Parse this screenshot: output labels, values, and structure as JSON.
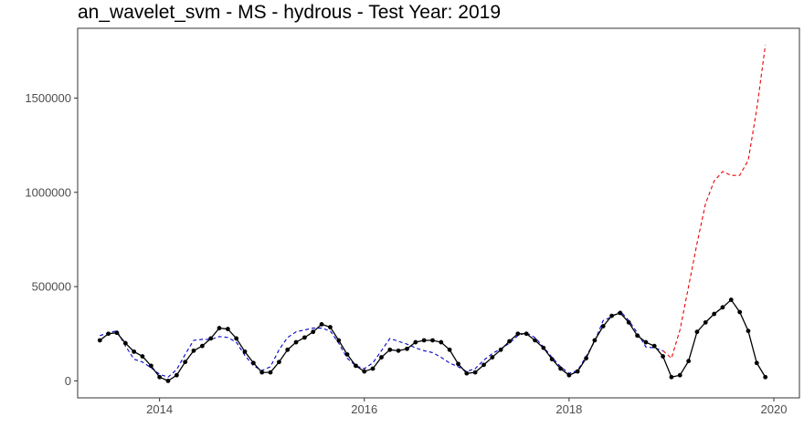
{
  "chart_data": {
    "type": "line",
    "title": "an_wavelet_svm - MS - hydrous - Test Year: 2019",
    "xlabel": "",
    "ylabel": "",
    "xlim": [
      2013.2,
      2020.25
    ],
    "ylim": [
      -90000,
      1870000
    ],
    "x_ticks": [
      2014,
      2016,
      2018,
      2020
    ],
    "y_ticks": [
      0,
      500000,
      1000000,
      1500000
    ],
    "x_tick_labels": [
      "2014",
      "2016",
      "2018",
      "2020"
    ],
    "y_tick_labels": [
      "0",
      "500000",
      "1000000",
      "1500000"
    ],
    "grid": false,
    "legend": "none",
    "series": [
      {
        "style": "solid-black-with-points",
        "color": "#000000",
        "x": [
          2013.417,
          2013.5,
          2013.583,
          2013.667,
          2013.75,
          2013.833,
          2013.917,
          2014.0,
          2014.083,
          2014.167,
          2014.25,
          2014.333,
          2014.417,
          2014.5,
          2014.583,
          2014.667,
          2014.75,
          2014.833,
          2014.917,
          2015.0,
          2015.083,
          2015.167,
          2015.25,
          2015.333,
          2015.417,
          2015.5,
          2015.583,
          2015.667,
          2015.75,
          2015.833,
          2015.917,
          2016.0,
          2016.083,
          2016.167,
          2016.25,
          2016.333,
          2016.417,
          2016.5,
          2016.583,
          2016.667,
          2016.75,
          2016.833,
          2016.917,
          2017.0,
          2017.083,
          2017.167,
          2017.25,
          2017.333,
          2017.417,
          2017.5,
          2017.583,
          2017.667,
          2017.75,
          2017.833,
          2017.917,
          2018.0,
          2018.083,
          2018.167,
          2018.25,
          2018.333,
          2018.417,
          2018.5,
          2018.583,
          2018.667,
          2018.75,
          2018.833,
          2018.917,
          2019.0,
          2019.083,
          2019.167,
          2019.25,
          2019.333,
          2019.417,
          2019.5,
          2019.583,
          2019.667,
          2019.75,
          2019.833,
          2019.917
        ],
        "values": [
          215000,
          250000,
          255000,
          200000,
          155000,
          130000,
          80000,
          20000,
          0,
          30000,
          100000,
          160000,
          185000,
          225000,
          280000,
          275000,
          225000,
          155000,
          95000,
          45000,
          45000,
          100000,
          165000,
          205000,
          230000,
          260000,
          300000,
          285000,
          215000,
          140000,
          80000,
          50000,
          65000,
          125000,
          165000,
          160000,
          170000,
          205000,
          215000,
          215000,
          205000,
          165000,
          90000,
          40000,
          45000,
          85000,
          125000,
          165000,
          210000,
          250000,
          250000,
          215000,
          175000,
          115000,
          65000,
          30000,
          50000,
          120000,
          215000,
          290000,
          345000,
          360000,
          310000,
          240000,
          205000,
          185000,
          130000,
          20000,
          30000,
          105000,
          260000,
          310000,
          355000,
          390000,
          430000,
          365000,
          265000,
          95000,
          20000
        ]
      },
      {
        "style": "dashed-blue",
        "color": "#0000cc",
        "x": [
          2013.417,
          2013.5,
          2013.583,
          2013.667,
          2013.75,
          2013.833,
          2013.917,
          2014.0,
          2014.083,
          2014.167,
          2014.25,
          2014.333,
          2014.417,
          2014.5,
          2014.583,
          2014.667,
          2014.75,
          2014.833,
          2014.917,
          2015.0,
          2015.083,
          2015.167,
          2015.25,
          2015.333,
          2015.417,
          2015.5,
          2015.583,
          2015.667,
          2015.75,
          2015.833,
          2015.917,
          2016.0,
          2016.083,
          2016.167,
          2016.25,
          2016.333,
          2016.417,
          2016.5,
          2016.583,
          2016.667,
          2016.75,
          2016.833,
          2016.917,
          2017.0,
          2017.083,
          2017.167,
          2017.25,
          2017.333,
          2017.417,
          2017.5,
          2017.583,
          2017.667,
          2017.75,
          2017.833,
          2017.917,
          2018.0,
          2018.083,
          2018.167,
          2018.25,
          2018.333,
          2018.417,
          2018.5,
          2018.583,
          2018.667,
          2018.75,
          2018.833,
          2018.917
        ],
        "values": [
          240000,
          255000,
          265000,
          185000,
          115000,
          100000,
          70000,
          35000,
          20000,
          60000,
          140000,
          215000,
          220000,
          220000,
          235000,
          230000,
          205000,
          135000,
          80000,
          55000,
          75000,
          165000,
          230000,
          260000,
          270000,
          280000,
          280000,
          265000,
          200000,
          120000,
          80000,
          65000,
          95000,
          160000,
          225000,
          210000,
          195000,
          175000,
          160000,
          150000,
          125000,
          95000,
          75000,
          50000,
          65000,
          110000,
          145000,
          170000,
          200000,
          240000,
          255000,
          230000,
          180000,
          125000,
          75000,
          40000,
          55000,
          130000,
          210000,
          320000,
          340000,
          370000,
          320000,
          255000,
          180000,
          175000,
          160000
        ]
      },
      {
        "style": "dashed-red",
        "color": "#ee0000",
        "x": [
          2018.917,
          2019.0,
          2019.083,
          2019.167,
          2019.25,
          2019.333,
          2019.417,
          2019.5,
          2019.583,
          2019.667,
          2019.75,
          2019.833,
          2019.917
        ],
        "values": [
          160000,
          120000,
          270000,
          500000,
          730000,
          940000,
          1060000,
          1110000,
          1090000,
          1090000,
          1170000,
          1440000,
          1780000
        ]
      }
    ]
  }
}
